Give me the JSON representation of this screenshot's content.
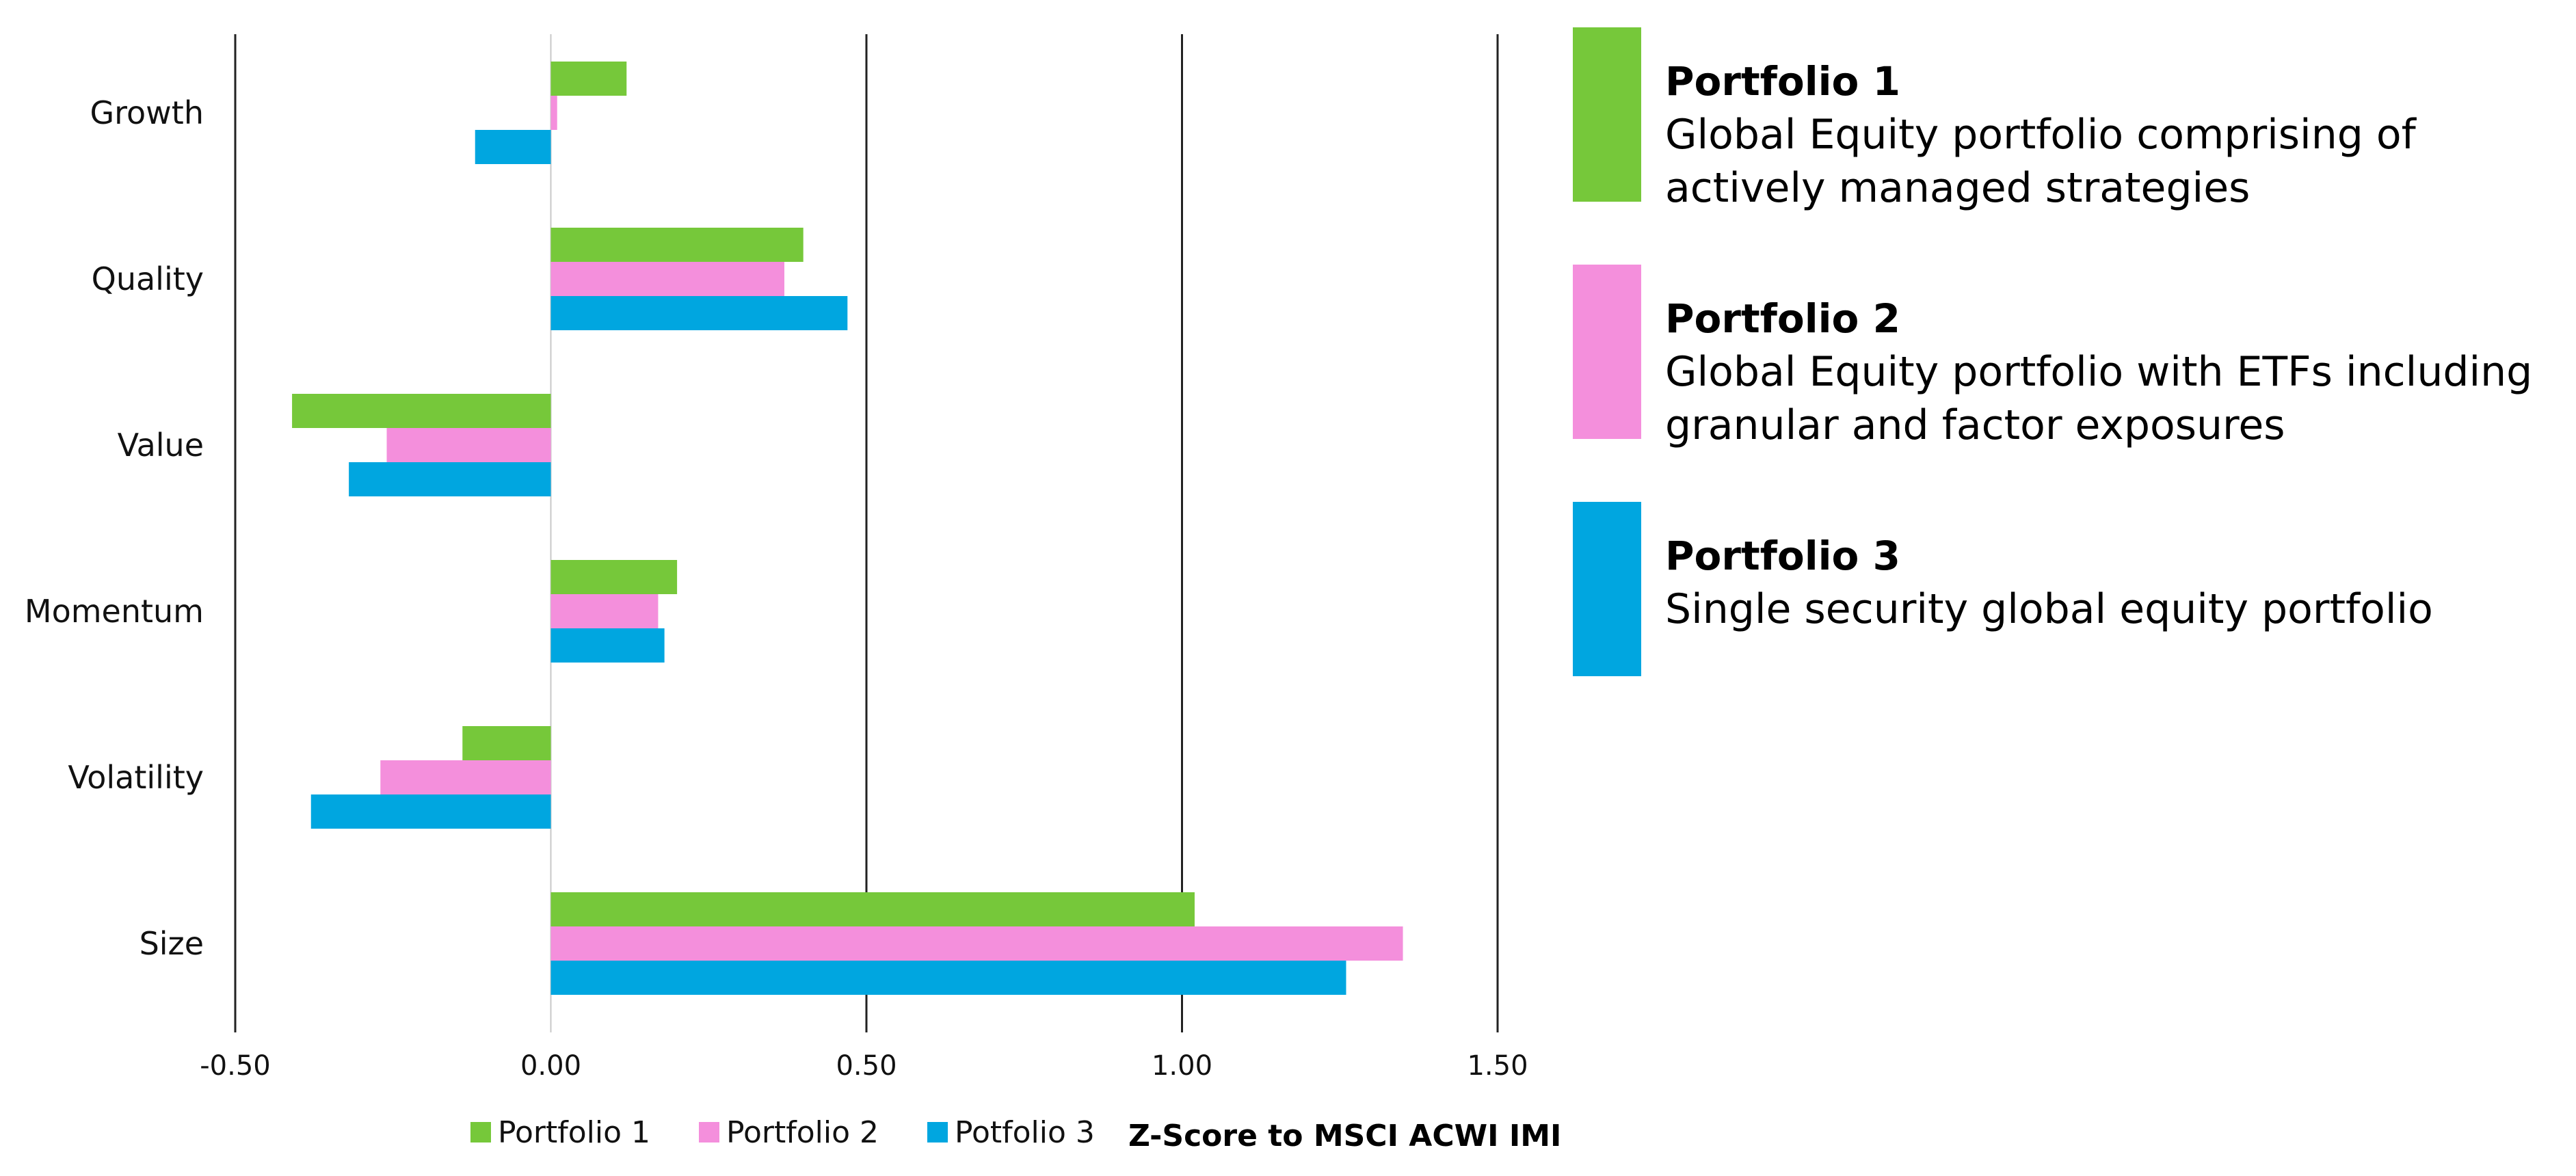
{
  "chart_data": {
    "type": "bar",
    "orientation": "horizontal",
    "categories": [
      "Growth",
      "Quality",
      "Value",
      "Momentum",
      "Volatility",
      "Size"
    ],
    "series": [
      {
        "name": "Portfolio 1",
        "color": "#76c83a",
        "values": [
          0.12,
          0.4,
          -0.41,
          0.2,
          -0.14,
          1.02
        ]
      },
      {
        "name": "Portfolio 2",
        "color": "#f48fdc",
        "values": [
          0.01,
          0.37,
          -0.26,
          0.17,
          -0.27,
          1.35
        ]
      },
      {
        "name": "Portfolio 3",
        "color": "#00a6e0",
        "values": [
          -0.12,
          0.47,
          -0.32,
          0.18,
          -0.38,
          1.26
        ]
      }
    ],
    "xticks": [
      "-0.50",
      "0.00",
      "0.50",
      "1.00",
      "1.50"
    ],
    "xlim": [
      -0.5,
      1.5
    ],
    "xlabel": "Z-Score to MSCI ACWI IMI",
    "ylabel": "",
    "grid": "vertical gridlines at major ticks",
    "legend": {
      "position": "bottom",
      "labels": [
        "Portfolio 1",
        "Portfolio 2",
        "Potfolio 3"
      ]
    }
  },
  "side_legend": [
    {
      "title": "Portfolio 1",
      "description": "Global Equity portfolio comprising of actively managed strategies",
      "color": "#76c83a"
    },
    {
      "title": "Portfolio 2",
      "description": "Global Equity portfolio with ETFs including granular and factor exposures",
      "color": "#f48fdc"
    },
    {
      "title": "Portfolio 3",
      "description": "Single security global equity portfolio",
      "color": "#00a6e0"
    }
  ]
}
